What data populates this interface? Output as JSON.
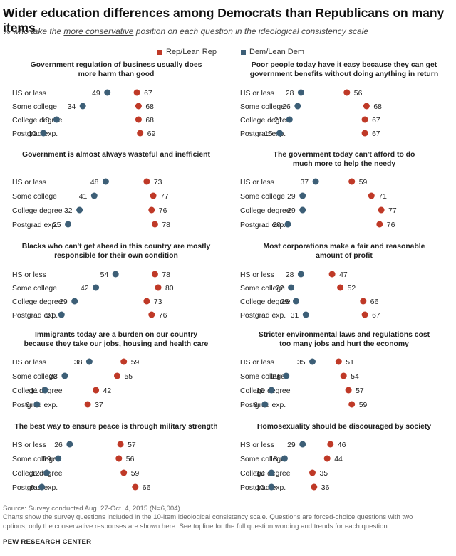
{
  "title": "Wider education differences among Democrats than Republicans on many items",
  "subtitle": {
    "before": "% who take the ",
    "underlined": "more conservative",
    "after": " position on each question in the ideological consistency scale"
  },
  "legend": {
    "rep": {
      "label": "Rep/Lean Rep",
      "color": "#bf3927"
    },
    "dem": {
      "label": "Dem/Lean Dem",
      "color": "#3d5f77"
    }
  },
  "colors": {
    "rep": "#bf3927",
    "dem": "#3d5f77"
  },
  "categories": [
    "HS or less",
    "Some college",
    "College degree",
    "Postgrad exp."
  ],
  "chart_data": [
    {
      "type": "scatter",
      "title": [
        "Government regulation of business usually does",
        "more harm than good"
      ],
      "categories": [
        "HS or less",
        "Some college",
        "College degree",
        "Postgrad exp."
      ],
      "series": [
        {
          "name": "Dem/Lean Dem",
          "values": [
            49,
            34,
            18,
            10
          ]
        },
        {
          "name": "Rep/Lean Rep",
          "values": [
            67,
            68,
            68,
            69
          ]
        }
      ]
    },
    {
      "type": "scatter",
      "title": [
        "Poor people today have it easy because they can get",
        "government benefits without doing anything in return"
      ],
      "categories": [
        "HS or less",
        "Some college",
        "College degree",
        "Postgrad exp."
      ],
      "series": [
        {
          "name": "Dem/Lean Dem",
          "values": [
            28,
            26,
            21,
            15
          ]
        },
        {
          "name": "Rep/Lean Rep",
          "values": [
            56,
            68,
            67,
            67
          ]
        }
      ]
    },
    {
      "type": "scatter",
      "title": [
        "Government is almost always wasteful and inefficient"
      ],
      "categories": [
        "HS or less",
        "Some college",
        "College degree",
        "Postgrad exp."
      ],
      "series": [
        {
          "name": "Dem/Lean Dem",
          "values": [
            48,
            41,
            32,
            25
          ]
        },
        {
          "name": "Rep/Lean Rep",
          "values": [
            73,
            77,
            76,
            78
          ]
        }
      ]
    },
    {
      "type": "scatter",
      "title": [
        "The government today can't afford to do",
        "much more to help the needy"
      ],
      "categories": [
        "HS or less",
        "Some college",
        "College degree",
        "Postgrad exp."
      ],
      "series": [
        {
          "name": "Dem/Lean Dem",
          "values": [
            37,
            29,
            29,
            20
          ]
        },
        {
          "name": "Rep/Lean Rep",
          "values": [
            59,
            71,
            77,
            76
          ]
        }
      ]
    },
    {
      "type": "scatter",
      "title": [
        "Blacks who can't get ahead in this country are mostly",
        "responsible for their own condition"
      ],
      "categories": [
        "HS or less",
        "Some college",
        "College degree",
        "Postgrad exp."
      ],
      "series": [
        {
          "name": "Dem/Lean Dem",
          "values": [
            54,
            42,
            29,
            21
          ]
        },
        {
          "name": "Rep/Lean Rep",
          "values": [
            78,
            80,
            73,
            76
          ]
        }
      ]
    },
    {
      "type": "scatter",
      "title": [
        "Most corporations make a fair and reasonable",
        "amount of profit"
      ],
      "categories": [
        "HS or less",
        "Some college",
        "College degree",
        "Postgrad exp."
      ],
      "series": [
        {
          "name": "Dem/Lean Dem",
          "values": [
            28,
            22,
            25,
            31
          ]
        },
        {
          "name": "Rep/Lean Rep",
          "values": [
            47,
            52,
            66,
            67
          ]
        }
      ]
    },
    {
      "type": "scatter",
      "title": [
        "Immigrants today are a burden on our country",
        "because they take our jobs, housing and health care"
      ],
      "categories": [
        "HS or less",
        "Some college",
        "College degree",
        "Postgrad exp."
      ],
      "series": [
        {
          "name": "Dem/Lean Dem",
          "values": [
            38,
            23,
            11,
            6
          ]
        },
        {
          "name": "Rep/Lean Rep",
          "values": [
            59,
            55,
            42,
            37
          ]
        }
      ]
    },
    {
      "type": "scatter",
      "title": [
        "Stricter environmental laws and regulations cost",
        "too many jobs and hurt the economy"
      ],
      "categories": [
        "HS or less",
        "Some college",
        "College degree",
        "Postgrad exp."
      ],
      "series": [
        {
          "name": "Dem/Lean Dem",
          "values": [
            35,
            19,
            10,
            6
          ]
        },
        {
          "name": "Rep/Lean Rep",
          "values": [
            51,
            54,
            57,
            59
          ]
        }
      ]
    },
    {
      "type": "scatter",
      "title": [
        "The best way to ensure peace is through military strength"
      ],
      "categories": [
        "HS or less",
        "Some college",
        "College degree",
        "Postgrad exp."
      ],
      "series": [
        {
          "name": "Dem/Lean Dem",
          "values": [
            26,
            19,
            12,
            9
          ]
        },
        {
          "name": "Rep/Lean Rep",
          "values": [
            57,
            56,
            59,
            66
          ]
        }
      ]
    },
    {
      "type": "scatter",
      "title": [
        "Homosexuality should be discouraged by society"
      ],
      "categories": [
        "HS or less",
        "Some college",
        "College degree",
        "Postgrad exp."
      ],
      "series": [
        {
          "name": "Dem/Lean Dem",
          "values": [
            29,
            18,
            10,
            10
          ]
        },
        {
          "name": "Rep/Lean Rep",
          "values": [
            46,
            44,
            35,
            36
          ]
        }
      ]
    }
  ],
  "source": {
    "line1": "Source: Survey conducted Aug. 27-Oct. 4, 2015 (N=6,004).",
    "line2": "Charts show the survey questions included in the 10-item ideological consistency scale. Questions are forced-choice questions with two",
    "line3": "options; only the conservative responses are shown here. See topline for the full question wording and trends for each question."
  },
  "org": "PEW RESEARCH CENTER"
}
